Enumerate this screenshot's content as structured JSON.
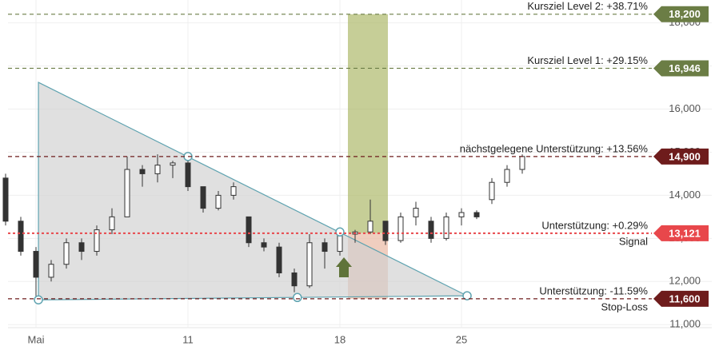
{
  "chart_data": {
    "type": "candlestick",
    "categories": [
      null,
      null,
      "Mai",
      null,
      null,
      null,
      null,
      null,
      null,
      null,
      null,
      null,
      "11",
      null,
      null,
      null,
      null,
      null,
      null,
      null,
      null,
      null,
      "18",
      null,
      null,
      null,
      null,
      null,
      null,
      null,
      "25",
      null,
      null,
      null,
      null
    ],
    "open": [
      14400,
      13400,
      12700,
      12100,
      12400,
      12900,
      12700,
      13200,
      13500,
      14600,
      14500,
      14700,
      14750,
      14200,
      13700,
      14000,
      13500,
      12900,
      12800,
      12200,
      11900,
      12900,
      12700,
      13100,
      13150,
      13400,
      12950,
      13500,
      13400,
      13000,
      13500,
      13600,
      13900,
      14300,
      14600
    ],
    "high": [
      14500,
      13500,
      12800,
      12500,
      13000,
      13000,
      13300,
      13700,
      14900,
      14700,
      14950,
      14800,
      14900,
      14200,
      14100,
      14300,
      13500,
      13000,
      12900,
      12300,
      13100,
      13000,
      13200,
      13200,
      13900,
      13400,
      13600,
      13850,
      13500,
      13600,
      13700,
      13650,
      14400,
      14700,
      14950
    ],
    "low": [
      13300,
      12600,
      11600,
      12000,
      12300,
      12500,
      12600,
      13100,
      13500,
      14200,
      14300,
      14400,
      14100,
      13600,
      13650,
      13900,
      12800,
      12700,
      12100,
      11750,
      11850,
      12300,
      12600,
      12900,
      13100,
      12850,
      12900,
      13300,
      12900,
      12950,
      13300,
      13450,
      13800,
      14200,
      14500
    ],
    "close": [
      13400,
      12700,
      12100,
      12400,
      12900,
      12700,
      13200,
      13500,
      14600,
      14500,
      14700,
      14750,
      14200,
      13700,
      14000,
      14200,
      12900,
      12800,
      12200,
      11900,
      12900,
      12700,
      13100,
      13150,
      13400,
      12950,
      13500,
      13700,
      13000,
      13500,
      13600,
      13500,
      14300,
      14600,
      14900
    ],
    "ylim": [
      10560,
      18530
    ],
    "yticks": [
      {
        "value": 11000,
        "label": "11,000"
      },
      {
        "value": 12000,
        "label": "12,000"
      },
      {
        "value": 13000,
        "label": "13,000"
      },
      {
        "value": 14000,
        "label": "14,000"
      },
      {
        "value": 15000,
        "label": "15,000"
      },
      {
        "value": 16000,
        "label": "16,000"
      },
      {
        "value": 17000,
        "label": "17,000"
      },
      {
        "value": 18000,
        "label": "18,000"
      }
    ],
    "grid": true,
    "levels": [
      {
        "value": 18200,
        "label": "18,200",
        "text": "Kursziel Level 2: +38.71%",
        "color": "#6b7d45"
      },
      {
        "value": 16946,
        "label": "16,946",
        "text": "Kursziel Level 1: +29.15%",
        "color": "#6b7d45"
      },
      {
        "value": 14900,
        "label": "14,900",
        "text": "nächstgelegene Unterstützung: +13.56%",
        "color": "#6e1c1c"
      },
      {
        "value": 13121,
        "label": "13,121",
        "text": "Unterstützung: +0.29%",
        "subtext": "Signal",
        "color": "#e8474b"
      },
      {
        "value": 11600,
        "label": "11,600",
        "text": "Unterstützung: -11.59%",
        "subtext": "Stop-Loss",
        "color": "#6e1c1c"
      }
    ],
    "pattern": {
      "points": [
        [
          2.16,
          16620
        ],
        [
          30.37,
          11670
        ],
        [
          2.16,
          11575
        ]
      ],
      "markers": [
        [
          2.16,
          11575
        ],
        [
          12,
          14900
        ],
        [
          22,
          13150
        ],
        [
          19.2,
          11630
        ],
        [
          30.37,
          11670
        ]
      ]
    }
  }
}
